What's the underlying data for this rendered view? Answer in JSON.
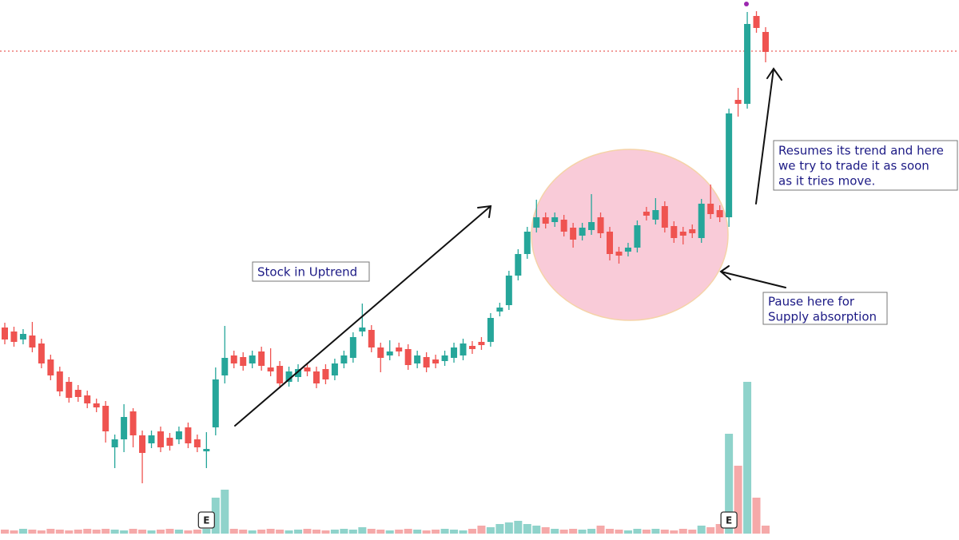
{
  "chart_data": {
    "type": "candlestick",
    "up_color": "#26a69a",
    "down_color": "#ef5350",
    "volume_up_color": "#8fd3cb",
    "volume_down_color": "#f5a9a9",
    "ylim": [
      0,
      676
    ],
    "y2lim": [
      0,
      668
    ],
    "price_line": 612,
    "open": [
      266,
      261,
      251,
      256,
      246,
      226,
      211,
      198,
      188,
      181,
      171,
      168,
      116,
      126,
      161,
      131,
      121,
      136,
      128,
      126,
      141,
      126,
      111,
      141,
      206,
      231,
      229,
      221,
      236,
      216,
      218,
      198,
      204,
      216,
      211,
      214,
      206,
      221,
      228,
      261,
      263,
      241,
      231,
      241,
      239,
      221,
      229,
      226,
      224,
      228,
      231,
      243,
      248,
      248,
      286,
      294,
      331,
      358,
      391,
      404,
      398,
      401,
      391,
      381,
      388,
      404,
      386,
      361,
      361,
      366,
      411,
      401,
      418,
      393,
      386,
      389,
      378,
      421,
      413,
      404,
      551,
      546,
      656,
      636
    ],
    "high": [
      272,
      267,
      264,
      273,
      252,
      232,
      217,
      204,
      194,
      187,
      177,
      174,
      132,
      170,
      165,
      137,
      137,
      142,
      134,
      142,
      147,
      132,
      135,
      216,
      268,
      237,
      235,
      237,
      242,
      240,
      224,
      217,
      220,
      222,
      217,
      220,
      227,
      237,
      260,
      296,
      269,
      247,
      250,
      247,
      245,
      237,
      235,
      232,
      237,
      247,
      252,
      249,
      254,
      284,
      297,
      337,
      364,
      392,
      426,
      410,
      410,
      407,
      397,
      397,
      433,
      410,
      392,
      367,
      372,
      400,
      417,
      428,
      424,
      399,
      392,
      395,
      427,
      445,
      419,
      540,
      566,
      661,
      662,
      642
    ],
    "low": [
      245,
      242,
      245,
      235,
      215,
      200,
      180,
      172,
      173,
      165,
      160,
      122,
      90,
      110,
      116,
      71,
      115,
      110,
      112,
      120,
      115,
      110,
      90,
      131,
      196,
      215,
      212,
      215,
      212,
      205,
      190,
      192,
      198,
      205,
      190,
      195,
      200,
      215,
      222,
      255,
      235,
      210,
      225,
      230,
      213,
      215,
      210,
      215,
      218,
      222,
      225,
      233,
      238,
      242,
      280,
      288,
      325,
      352,
      385,
      390,
      392,
      380,
      366,
      375,
      382,
      378,
      350,
      346,
      355,
      360,
      400,
      395,
      385,
      372,
      370,
      378,
      372,
      402,
      398,
      392,
      530,
      540,
      635,
      598
    ],
    "close": [
      251,
      248,
      258,
      241,
      221,
      206,
      186,
      178,
      179,
      171,
      166,
      136,
      126,
      154,
      131,
      109,
      131,
      116,
      118,
      136,
      121,
      116,
      114,
      201,
      228,
      221,
      218,
      231,
      218,
      211,
      196,
      211,
      214,
      211,
      196,
      201,
      221,
      231,
      254,
      266,
      241,
      228,
      236,
      236,
      219,
      231,
      216,
      221,
      231,
      241,
      246,
      239,
      244,
      278,
      291,
      331,
      358,
      386,
      404,
      396,
      404,
      386,
      376,
      391,
      398,
      384,
      358,
      356,
      366,
      394,
      406,
      413,
      391,
      378,
      381,
      384,
      421,
      408,
      404,
      534,
      546,
      646,
      641,
      611
    ],
    "volume": [
      5,
      4,
      6,
      5,
      4,
      6,
      5,
      4,
      5,
      6,
      5,
      6,
      5,
      4,
      6,
      5,
      4,
      5,
      6,
      5,
      4,
      5,
      6,
      45,
      55,
      6,
      5,
      4,
      5,
      6,
      5,
      4,
      5,
      6,
      5,
      4,
      5,
      6,
      5,
      8,
      6,
      5,
      4,
      5,
      6,
      5,
      4,
      5,
      6,
      5,
      4,
      6,
      10,
      8,
      12,
      14,
      16,
      12,
      10,
      8,
      6,
      5,
      6,
      5,
      6,
      10,
      6,
      5,
      4,
      6,
      5,
      6,
      5,
      4,
      6,
      5,
      10,
      8,
      12,
      125,
      85,
      190,
      45,
      10
    ],
    "earnings": [
      22,
      79
    ],
    "earnings_label": "E",
    "annotations": [
      {
        "lines": [
          "Stock in Uptrend"
        ]
      },
      {
        "lines": [
          "Pause here for",
          "Supply absorption"
        ]
      },
      {
        "lines": [
          "Resumes its trend and here",
          "we try to trade it as soon",
          "as it tries move."
        ]
      }
    ]
  }
}
